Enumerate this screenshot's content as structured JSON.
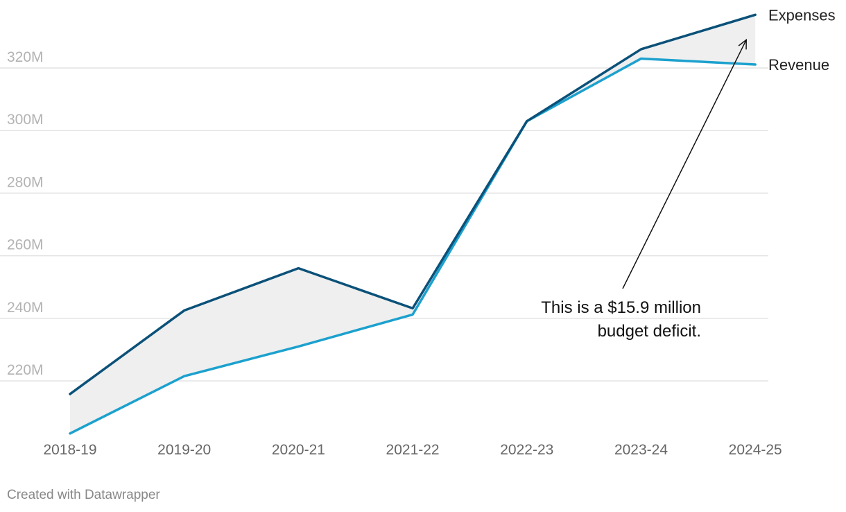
{
  "chart_data": {
    "type": "line",
    "categories": [
      "2018-19",
      "2019-20",
      "2020-21",
      "2021-22",
      "2022-23",
      "2023-24",
      "2024-25"
    ],
    "series": [
      {
        "name": "Expenses",
        "values": [
          215.8,
          242.5,
          256.0,
          243.2,
          303.0,
          326.0,
          337.0
        ],
        "color": "#0b5179"
      },
      {
        "name": "Revenue",
        "values": [
          203.2,
          221.5,
          231.0,
          241.2,
          303.0,
          323.0,
          321.1
        ],
        "color": "#1ca1ce"
      }
    ],
    "y_ticks": [
      220,
      240,
      260,
      280,
      300,
      320
    ],
    "y_tick_labels": [
      "220M",
      "240M",
      "260M",
      "280M",
      "300M",
      "320M"
    ],
    "ylim": [
      200,
      340
    ],
    "grid": true,
    "deficit_fill_color": "#efefef",
    "annotation": {
      "lines": [
        "This is a $15.9 million",
        "budget deficit."
      ],
      "points_to": {
        "category": "2024-25",
        "value": 329
      }
    },
    "title": "",
    "xlabel": "",
    "ylabel": ""
  },
  "footer": {
    "credit": "Created with Datawrapper"
  }
}
